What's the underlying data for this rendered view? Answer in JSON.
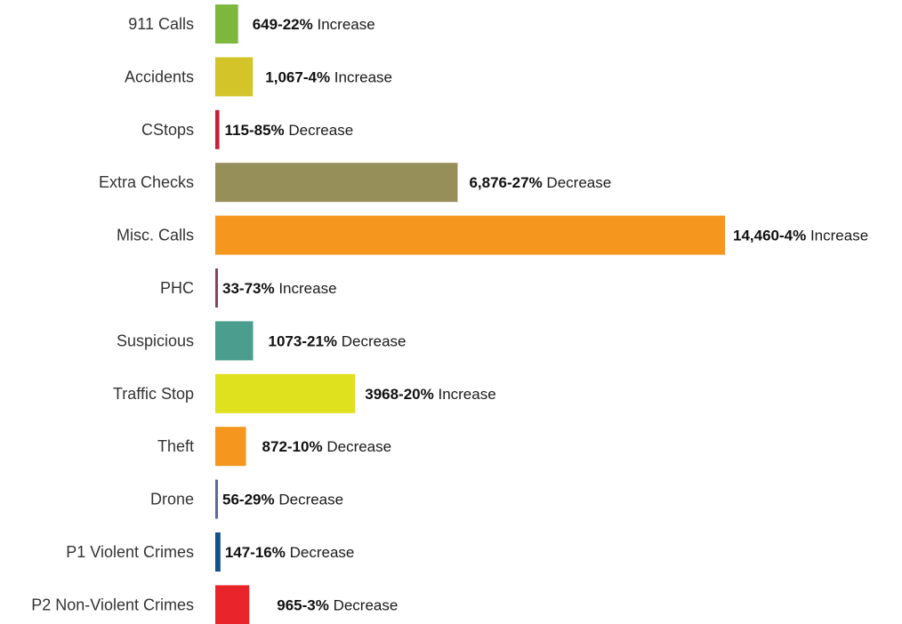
{
  "chart_data": {
    "type": "bar",
    "orientation": "horizontal",
    "categories": [
      "911 Calls",
      "Accidents",
      "CStops",
      "Extra Checks",
      "Misc. Calls",
      "PHC",
      "Suspicious",
      "Traffic Stop",
      "Theft",
      "Drone",
      "P1 Violent Crimes",
      "P2 Non-Violent Crimes"
    ],
    "values": [
      649,
      1067,
      115,
      6876,
      14460,
      33,
      1073,
      3968,
      872,
      56,
      147,
      965
    ],
    "value_texts": [
      "649-22%",
      "1,067-4%",
      "115-85%",
      "6,876-27%",
      "14,460-4%",
      "33-73%",
      "1073-21%",
      "3968-20%",
      "872-10%",
      "56-29%",
      "147-16%",
      "965-3%"
    ],
    "change_texts": [
      "Increase",
      "Increase",
      "Decrease",
      "Decrease",
      "Increase",
      "Increase",
      "Decrease",
      "Increase",
      "Decrease",
      "Decrease",
      "Decrease",
      "Decrease"
    ],
    "colors": [
      "#7db83e",
      "#d3c42a",
      "#c8203a",
      "#978f5a",
      "#f5961e",
      "#8b4060",
      "#4b9e8e",
      "#dfe11e",
      "#f5961e",
      "#5a6aa8",
      "#12508e",
      "#e8252a"
    ],
    "xlim": [
      0,
      14460
    ],
    "grid": false,
    "legend": "none",
    "title": "",
    "xlabel": "",
    "ylabel": ""
  }
}
